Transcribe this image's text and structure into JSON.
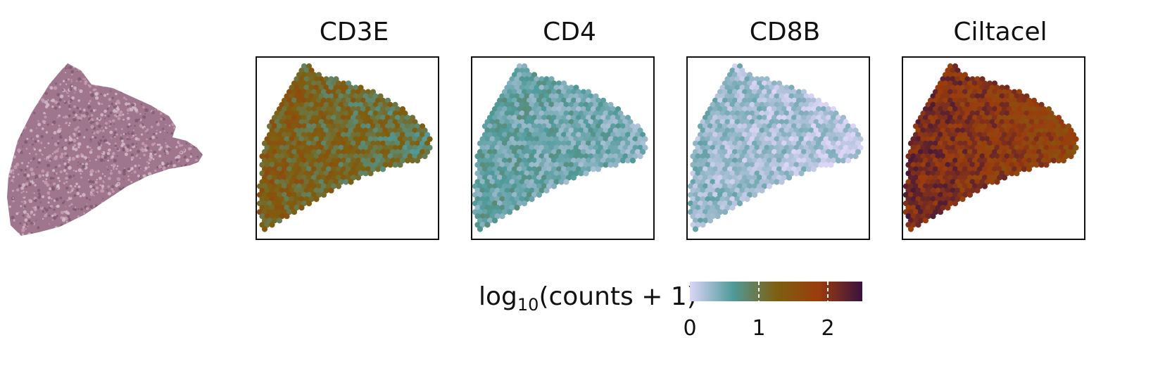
{
  "tissue_image": {
    "icon": "he-stained-tissue-section",
    "colors": [
      "#c9a0b4",
      "#a0768f",
      "#7c5a6f",
      "#d8c0cd"
    ]
  },
  "chart_data": {
    "type": "heatmap",
    "subtype": "spatial transcriptomics spot maps",
    "panels": [
      {
        "title": "CD3E",
        "mean_expression": 1.05,
        "spread": 0.35
      },
      {
        "title": "CD4",
        "mean_expression": 0.55,
        "spread": 0.25
      },
      {
        "title": "CD8B",
        "mean_expression": 0.3,
        "spread": 0.25
      },
      {
        "title": "Ciltacel",
        "mean_expression": 1.85,
        "spread": 0.3
      }
    ],
    "colorbar": {
      "label_main": "log",
      "label_sub": "10",
      "label_rest": "(counts + 1)",
      "ticks": [
        0,
        1,
        2
      ],
      "tick_labels": [
        "0",
        "1",
        "2"
      ],
      "range": [
        0,
        2.5
      ],
      "colors": [
        "#dcd5f7",
        "#4f9a9a",
        "#7d6010",
        "#9a3c0d",
        "#3a1240"
      ]
    }
  }
}
